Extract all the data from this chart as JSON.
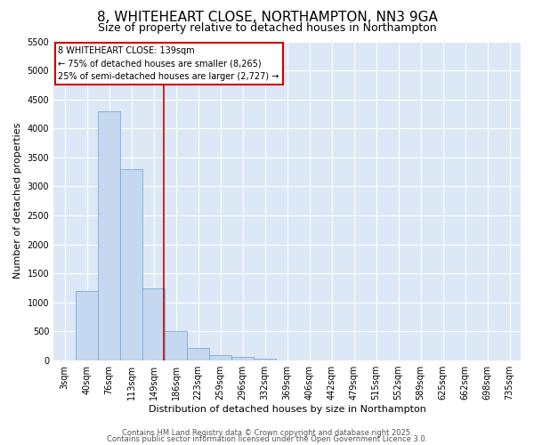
{
  "title": "8, WHITEHEART CLOSE, NORTHAMPTON, NN3 9GA",
  "subtitle": "Size of property relative to detached houses in Northampton",
  "xlabel": "Distribution of detached houses by size in Northampton",
  "ylabel": "Number of detached properties",
  "footer1": "Contains HM Land Registry data © Crown copyright and database right 2025.",
  "footer2": "Contains public sector information licensed under the Open Government Licence 3.0.",
  "bar_labels": [
    "3sqm",
    "40sqm",
    "76sqm",
    "113sqm",
    "149sqm",
    "186sqm",
    "223sqm",
    "259sqm",
    "296sqm",
    "332sqm",
    "369sqm",
    "406sqm",
    "442sqm",
    "479sqm",
    "515sqm",
    "552sqm",
    "589sqm",
    "625sqm",
    "662sqm",
    "698sqm",
    "735sqm"
  ],
  "bar_heights": [
    0,
    1200,
    4300,
    3300,
    1250,
    500,
    220,
    100,
    60,
    30,
    0,
    0,
    0,
    0,
    0,
    0,
    0,
    0,
    0,
    0,
    0
  ],
  "bar_color": "#c5d8f0",
  "bar_edge_color": "#7aadd4",
  "plot_bg_color": "#dce8f5",
  "grid_color": "#ffffff",
  "fig_bg_color": "#ffffff",
  "ylim": [
    0,
    5500
  ],
  "yticks": [
    0,
    500,
    1000,
    1500,
    2000,
    2500,
    3000,
    3500,
    4000,
    4500,
    5000,
    5500
  ],
  "red_line_x": 4.45,
  "legend_title": "8 WHITEHEART CLOSE: 139sqm",
  "legend_line1": "← 75% of detached houses are smaller (8,265)",
  "legend_line2": "25% of semi-detached houses are larger (2,727) →",
  "legend_border_color": "#cc0000",
  "title_fontsize": 11,
  "subtitle_fontsize": 9,
  "axis_label_fontsize": 8,
  "tick_fontsize": 7,
  "legend_fontsize": 7,
  "footer_fontsize": 6
}
